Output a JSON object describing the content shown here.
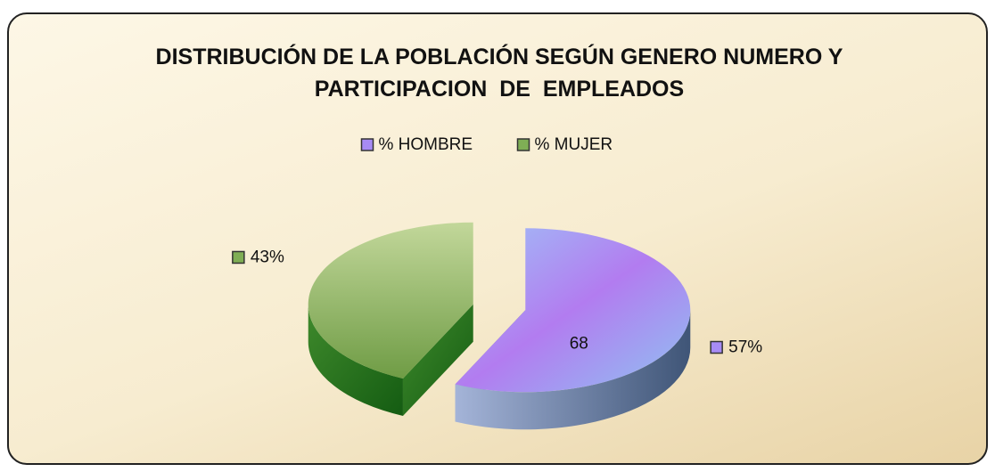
{
  "chart_data": {
    "type": "pie",
    "title": "DISTRIBUCIÓN DE LA POBLACIÓN SEGÚN GENERO NUMERO Y PARTICIPACION  DE  EMPLEADOS",
    "categories": [
      "% HOMBRE",
      "% MUJER"
    ],
    "values": [
      57,
      43
    ],
    "value_labels": [
      "57%",
      "43%"
    ],
    "colors": [
      "#a78bf5",
      "#7fae55"
    ],
    "annotation": "68",
    "legend": "top"
  }
}
